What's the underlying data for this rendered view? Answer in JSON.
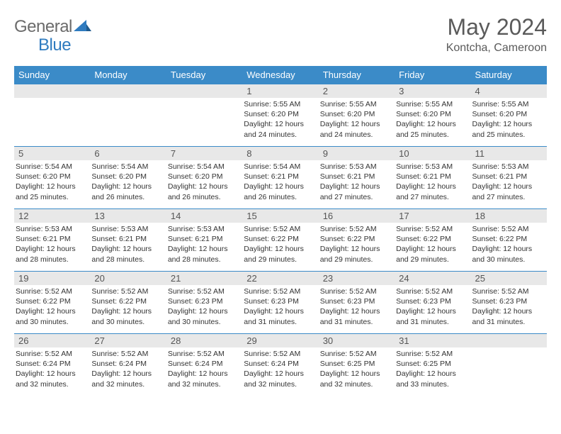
{
  "logo": {
    "text1": "General",
    "text2": "Blue"
  },
  "title": "May 2024",
  "location": "Kontcha, Cameroon",
  "colors": {
    "header_bg": "#3b8bc8",
    "header_text": "#ffffff",
    "daynum_bg": "#e8e8e8",
    "border": "#3b8bc8",
    "logo_gray": "#6b6b6b",
    "logo_blue": "#2f7bbf"
  },
  "weekdays": [
    "Sunday",
    "Monday",
    "Tuesday",
    "Wednesday",
    "Thursday",
    "Friday",
    "Saturday"
  ],
  "weeks": [
    [
      null,
      null,
      null,
      {
        "n": "1",
        "sr": "5:55 AM",
        "ss": "6:20 PM",
        "dl": "12 hours and 24 minutes."
      },
      {
        "n": "2",
        "sr": "5:55 AM",
        "ss": "6:20 PM",
        "dl": "12 hours and 24 minutes."
      },
      {
        "n": "3",
        "sr": "5:55 AM",
        "ss": "6:20 PM",
        "dl": "12 hours and 25 minutes."
      },
      {
        "n": "4",
        "sr": "5:55 AM",
        "ss": "6:20 PM",
        "dl": "12 hours and 25 minutes."
      }
    ],
    [
      {
        "n": "5",
        "sr": "5:54 AM",
        "ss": "6:20 PM",
        "dl": "12 hours and 25 minutes."
      },
      {
        "n": "6",
        "sr": "5:54 AM",
        "ss": "6:20 PM",
        "dl": "12 hours and 26 minutes."
      },
      {
        "n": "7",
        "sr": "5:54 AM",
        "ss": "6:20 PM",
        "dl": "12 hours and 26 minutes."
      },
      {
        "n": "8",
        "sr": "5:54 AM",
        "ss": "6:21 PM",
        "dl": "12 hours and 26 minutes."
      },
      {
        "n": "9",
        "sr": "5:53 AM",
        "ss": "6:21 PM",
        "dl": "12 hours and 27 minutes."
      },
      {
        "n": "10",
        "sr": "5:53 AM",
        "ss": "6:21 PM",
        "dl": "12 hours and 27 minutes."
      },
      {
        "n": "11",
        "sr": "5:53 AM",
        "ss": "6:21 PM",
        "dl": "12 hours and 27 minutes."
      }
    ],
    [
      {
        "n": "12",
        "sr": "5:53 AM",
        "ss": "6:21 PM",
        "dl": "12 hours and 28 minutes."
      },
      {
        "n": "13",
        "sr": "5:53 AM",
        "ss": "6:21 PM",
        "dl": "12 hours and 28 minutes."
      },
      {
        "n": "14",
        "sr": "5:53 AM",
        "ss": "6:21 PM",
        "dl": "12 hours and 28 minutes."
      },
      {
        "n": "15",
        "sr": "5:52 AM",
        "ss": "6:22 PM",
        "dl": "12 hours and 29 minutes."
      },
      {
        "n": "16",
        "sr": "5:52 AM",
        "ss": "6:22 PM",
        "dl": "12 hours and 29 minutes."
      },
      {
        "n": "17",
        "sr": "5:52 AM",
        "ss": "6:22 PM",
        "dl": "12 hours and 29 minutes."
      },
      {
        "n": "18",
        "sr": "5:52 AM",
        "ss": "6:22 PM",
        "dl": "12 hours and 30 minutes."
      }
    ],
    [
      {
        "n": "19",
        "sr": "5:52 AM",
        "ss": "6:22 PM",
        "dl": "12 hours and 30 minutes."
      },
      {
        "n": "20",
        "sr": "5:52 AM",
        "ss": "6:22 PM",
        "dl": "12 hours and 30 minutes."
      },
      {
        "n": "21",
        "sr": "5:52 AM",
        "ss": "6:23 PM",
        "dl": "12 hours and 30 minutes."
      },
      {
        "n": "22",
        "sr": "5:52 AM",
        "ss": "6:23 PM",
        "dl": "12 hours and 31 minutes."
      },
      {
        "n": "23",
        "sr": "5:52 AM",
        "ss": "6:23 PM",
        "dl": "12 hours and 31 minutes."
      },
      {
        "n": "24",
        "sr": "5:52 AM",
        "ss": "6:23 PM",
        "dl": "12 hours and 31 minutes."
      },
      {
        "n": "25",
        "sr": "5:52 AM",
        "ss": "6:23 PM",
        "dl": "12 hours and 31 minutes."
      }
    ],
    [
      {
        "n": "26",
        "sr": "5:52 AM",
        "ss": "6:24 PM",
        "dl": "12 hours and 32 minutes."
      },
      {
        "n": "27",
        "sr": "5:52 AM",
        "ss": "6:24 PM",
        "dl": "12 hours and 32 minutes."
      },
      {
        "n": "28",
        "sr": "5:52 AM",
        "ss": "6:24 PM",
        "dl": "12 hours and 32 minutes."
      },
      {
        "n": "29",
        "sr": "5:52 AM",
        "ss": "6:24 PM",
        "dl": "12 hours and 32 minutes."
      },
      {
        "n": "30",
        "sr": "5:52 AM",
        "ss": "6:25 PM",
        "dl": "12 hours and 32 minutes."
      },
      {
        "n": "31",
        "sr": "5:52 AM",
        "ss": "6:25 PM",
        "dl": "12 hours and 33 minutes."
      },
      null
    ]
  ],
  "labels": {
    "sunrise": "Sunrise:",
    "sunset": "Sunset:",
    "daylight": "Daylight:"
  }
}
